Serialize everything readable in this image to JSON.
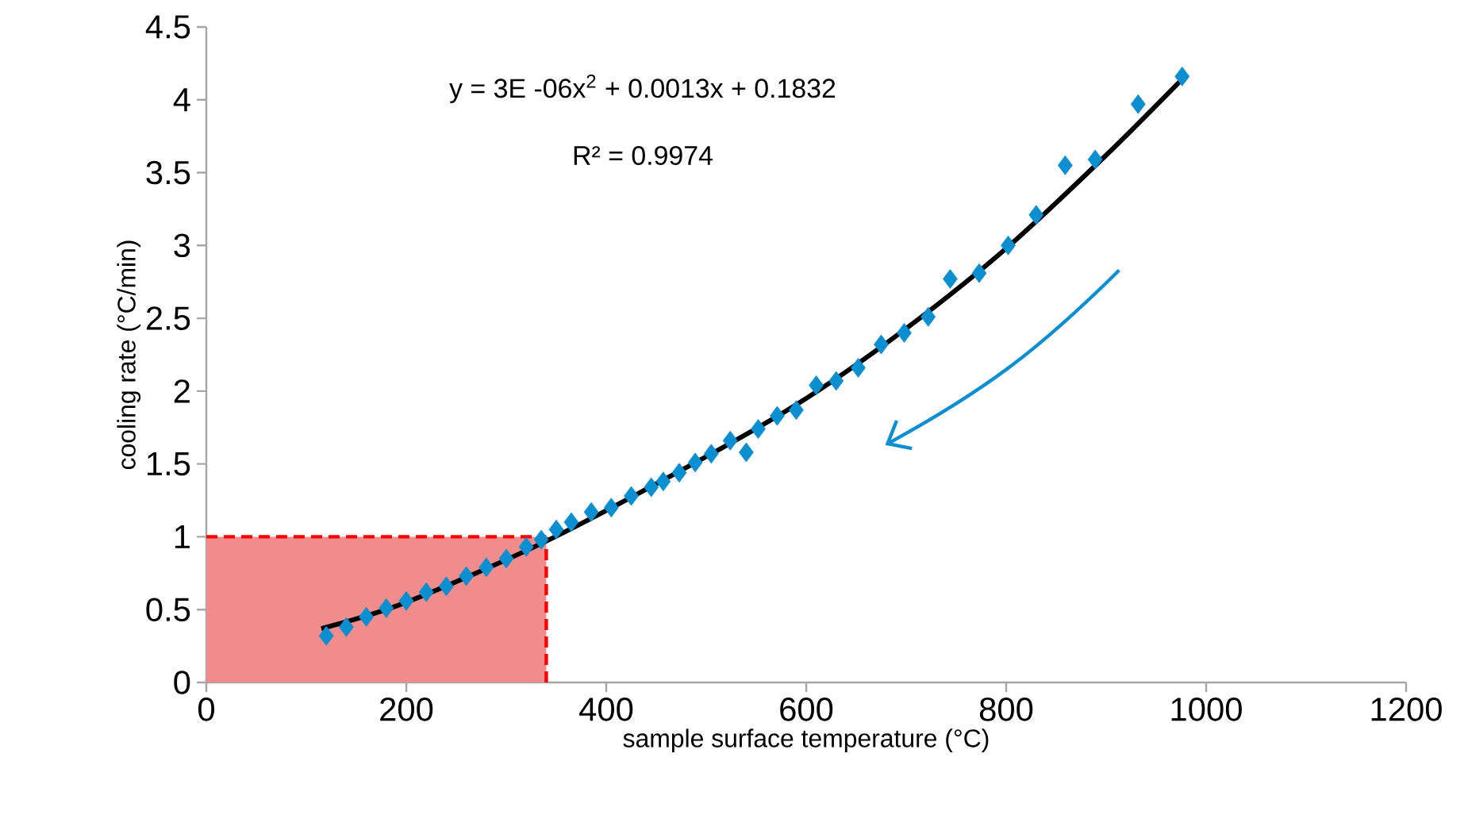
{
  "chart_data": {
    "type": "scatter",
    "xlabel": "sample surface temperature (°C)",
    "ylabel": "cooling rate (°C/min)",
    "xlim": [
      0,
      1200
    ],
    "xticks": [
      0,
      200,
      400,
      600,
      800,
      1000,
      1200
    ],
    "ylim": [
      0,
      4.5
    ],
    "yticks": [
      0,
      0.5,
      1,
      1.5,
      2,
      2.5,
      3,
      3.5,
      4,
      4.5
    ],
    "marker": "diamond",
    "series": [
      {
        "color": "#0b8fd1",
        "x": [
          120,
          140,
          160,
          180,
          200,
          220,
          240,
          260,
          280,
          300,
          320,
          335,
          350,
          365,
          385,
          405,
          425,
          445,
          457,
          473,
          489,
          505,
          524,
          540,
          552,
          571,
          590,
          610,
          630,
          652,
          675,
          698,
          722,
          744,
          773,
          802,
          830,
          859,
          889,
          932,
          976
        ],
        "values": [
          0.32,
          0.38,
          0.45,
          0.51,
          0.56,
          0.62,
          0.66,
          0.73,
          0.79,
          0.85,
          0.93,
          0.98,
          1.05,
          1.1,
          1.17,
          1.2,
          1.28,
          1.34,
          1.38,
          1.44,
          1.51,
          1.57,
          1.66,
          1.58,
          1.74,
          1.83,
          1.87,
          2.04,
          2.07,
          2.16,
          2.32,
          2.4,
          2.51,
          2.77,
          2.81,
          3.0,
          3.21,
          3.55,
          3.59,
          3.97,
          4.16
        ]
      },
      {
        "type": "line",
        "color": "#000000",
        "marker": "none",
        "x": [
          115,
          200,
          340,
          500,
          600,
          700,
          800,
          900,
          980
        ],
        "values": [
          0.37,
          0.55,
          0.97,
          1.55,
          1.95,
          2.43,
          2.98,
          3.62,
          4.17
        ]
      }
    ],
    "bands": [
      {
        "axis": "x",
        "from": 0,
        "to": 340,
        "color": "#f08c8c"
      }
    ],
    "ref_lines": [
      {
        "axis": "y",
        "value": 1,
        "color": "#ff0000",
        "line_style": "dashed"
      },
      {
        "axis": "x",
        "value": 340,
        "color": "#ff0000",
        "line_style": "dashed"
      }
    ],
    "annotations": [
      "y = 3E -06x$^{2}$ + 0.0013x + 0.1832",
      "R² = 0.9974"
    ]
  }
}
